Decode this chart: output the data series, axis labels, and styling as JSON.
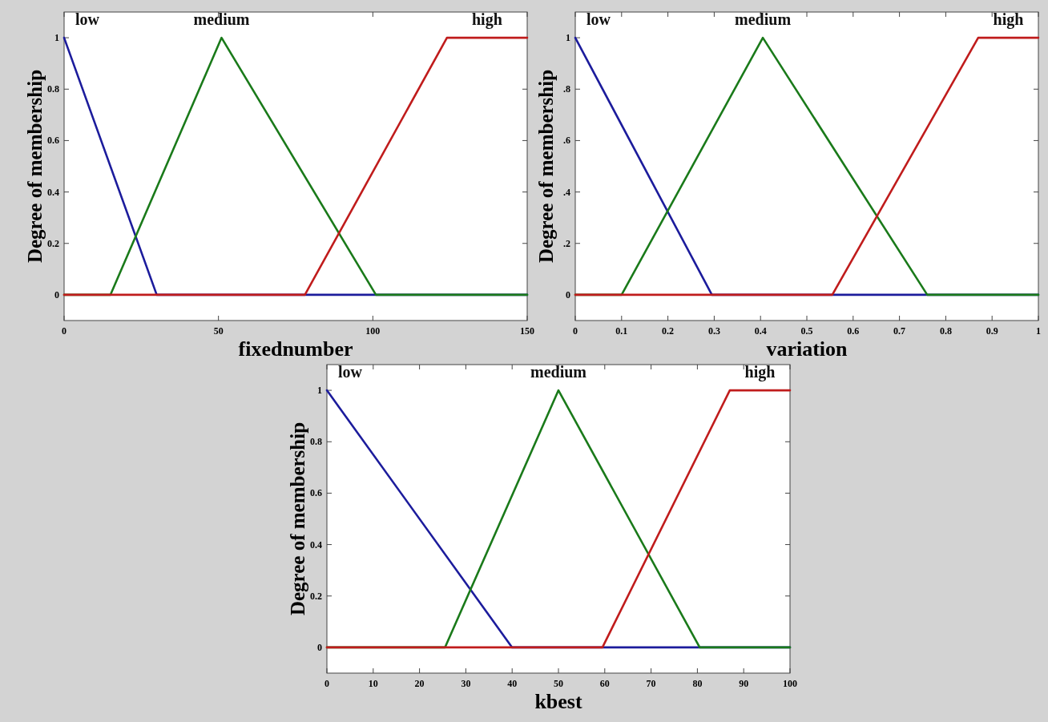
{
  "chart_data": [
    {
      "type": "line",
      "xlabel": "fixednumber",
      "ylabel": "Degree of membership",
      "xlim": [
        0,
        150
      ],
      "ylim": [
        -0.1,
        1.1
      ],
      "xticks": [
        0,
        50,
        100,
        150
      ],
      "yticks": [
        0,
        0.2,
        0.4,
        0.6,
        0.8,
        1
      ],
      "grid": false,
      "legend": false,
      "marker": "none",
      "line_style": "solid",
      "series": [
        {
          "name": "low",
          "color": "#1c1c9c",
          "x": [
            0,
            30,
            150
          ],
          "values": [
            1,
            0,
            0
          ]
        },
        {
          "name": "medium",
          "color": "#1a7a1a",
          "x": [
            0,
            15,
            51,
            101,
            150
          ],
          "values": [
            0,
            0,
            1,
            0,
            0
          ]
        },
        {
          "name": "high",
          "color": "#c01c1c",
          "x": [
            0,
            78,
            124,
            150
          ],
          "values": [
            0,
            0,
            1,
            1
          ]
        }
      ]
    },
    {
      "type": "line",
      "xlabel": "variation",
      "ylabel": "Degree of membership",
      "xlim": [
        0,
        1
      ],
      "ylim": [
        -0.1,
        1.1
      ],
      "xticks": [
        0,
        0.1,
        0.2,
        0.3,
        0.4,
        0.5,
        0.6,
        0.7,
        0.8,
        0.9,
        1
      ],
      "yticks": [
        0,
        {
          "value": 0.2,
          "label": ".2"
        },
        {
          "value": 0.4,
          "label": ".4"
        },
        {
          "value": 0.6,
          "label": ".6"
        },
        {
          "value": 0.8,
          "label": ".8"
        },
        1
      ],
      "grid": false,
      "legend": false,
      "marker": "none",
      "line_style": "solid",
      "series": [
        {
          "name": "low",
          "color": "#1c1c9c",
          "x": [
            0,
            0.295,
            1
          ],
          "values": [
            1,
            0,
            0
          ]
        },
        {
          "name": "medium",
          "color": "#1a7a1a",
          "x": [
            0,
            0.1,
            0.405,
            0.76,
            1
          ],
          "values": [
            0,
            0,
            1,
            0,
            0
          ]
        },
        {
          "name": "high",
          "color": "#c01c1c",
          "x": [
            0,
            0.555,
            0.87,
            1
          ],
          "values": [
            0,
            0,
            1,
            1
          ]
        }
      ]
    },
    {
      "type": "line",
      "xlabel": "kbest",
      "ylabel": "Degree of membership",
      "xlim": [
        0,
        100
      ],
      "ylim": [
        -0.1,
        1.1
      ],
      "xticks": [
        0,
        10,
        20,
        30,
        40,
        50,
        60,
        70,
        80,
        90,
        100
      ],
      "yticks": [
        0,
        0.2,
        0.4,
        0.6,
        0.8,
        1
      ],
      "grid": false,
      "legend": false,
      "marker": "none",
      "line_style": "solid",
      "series": [
        {
          "name": "low",
          "color": "#1c1c9c",
          "x": [
            0,
            40,
            100
          ],
          "values": [
            1,
            0,
            0
          ]
        },
        {
          "name": "medium",
          "color": "#1a7a1a",
          "x": [
            0,
            25.5,
            50,
            80.5,
            100
          ],
          "values": [
            0,
            0,
            1,
            0,
            0
          ]
        },
        {
          "name": "high",
          "color": "#c01c1c",
          "x": [
            0,
            59.5,
            87,
            100
          ],
          "values": [
            0,
            0,
            1,
            1
          ]
        }
      ]
    }
  ]
}
